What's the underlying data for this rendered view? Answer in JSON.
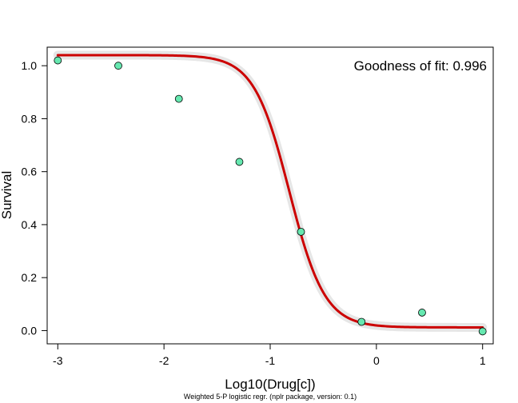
{
  "chart_data": {
    "type": "scatter",
    "title": "",
    "xlabel": "Log10(Drug[c])",
    "ylabel": "Survival",
    "annotation": "Goodness of fit: 0.996",
    "footnote": "Weighted 5-P logistic regr. (nplr package, version: 0.1)",
    "xlim": [
      -3.1,
      1.1
    ],
    "ylim": [
      -0.05,
      1.07
    ],
    "x_ticks": [
      -3,
      -2,
      -1,
      0,
      1
    ],
    "x_tick_labels": [
      "-3",
      "-2",
      "-1",
      "0",
      "1"
    ],
    "y_ticks": [
      0.0,
      0.2,
      0.4,
      0.6,
      0.8,
      1.0
    ],
    "y_tick_labels": [
      "0.0",
      "0.2",
      "0.4",
      "0.6",
      "0.8",
      "1.0"
    ],
    "grid": false,
    "points": {
      "x": [
        -3.0,
        -2.43,
        -1.86,
        -1.29,
        -0.71,
        -0.14,
        0.43,
        1.0
      ],
      "y": [
        1.02,
        1.0,
        0.875,
        0.637,
        0.373,
        0.033,
        0.068,
        -0.003
      ],
      "color": "#66e8b0"
    },
    "fit_curve": {
      "model": "5-parameter logistic",
      "bottom": 0.012,
      "top": 1.04,
      "xmid": -0.82,
      "scal": -2.6,
      "s": 1.0,
      "color": "#cc0000",
      "band_color": "#e6e6e6"
    }
  }
}
